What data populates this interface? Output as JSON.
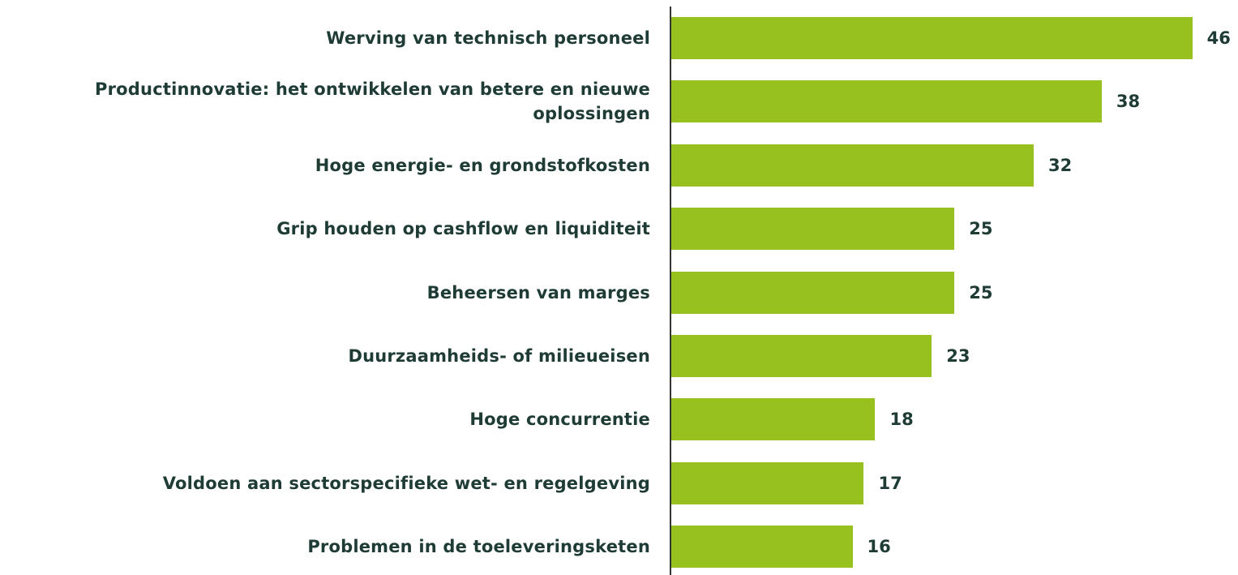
{
  "chart_data": {
    "type": "bar",
    "orientation": "horizontal",
    "categories": [
      "Werving van technisch personeel",
      "Productinnovatie: het ontwikkelen van betere en nieuwe oplossingen",
      "Hoge energie- en grondstofkosten",
      "Grip houden op cashflow en liquiditeit",
      "Beheersen van marges",
      "Duurzaamheids- of milieueisen",
      "Hoge concurrentie",
      "Voldoen aan sectorspecifieke wet- en regelgeving",
      "Problemen in de toeleveringsketen"
    ],
    "values": [
      46,
      38,
      32,
      25,
      25,
      23,
      18,
      17,
      16
    ],
    "color": "#97c11f"
  }
}
